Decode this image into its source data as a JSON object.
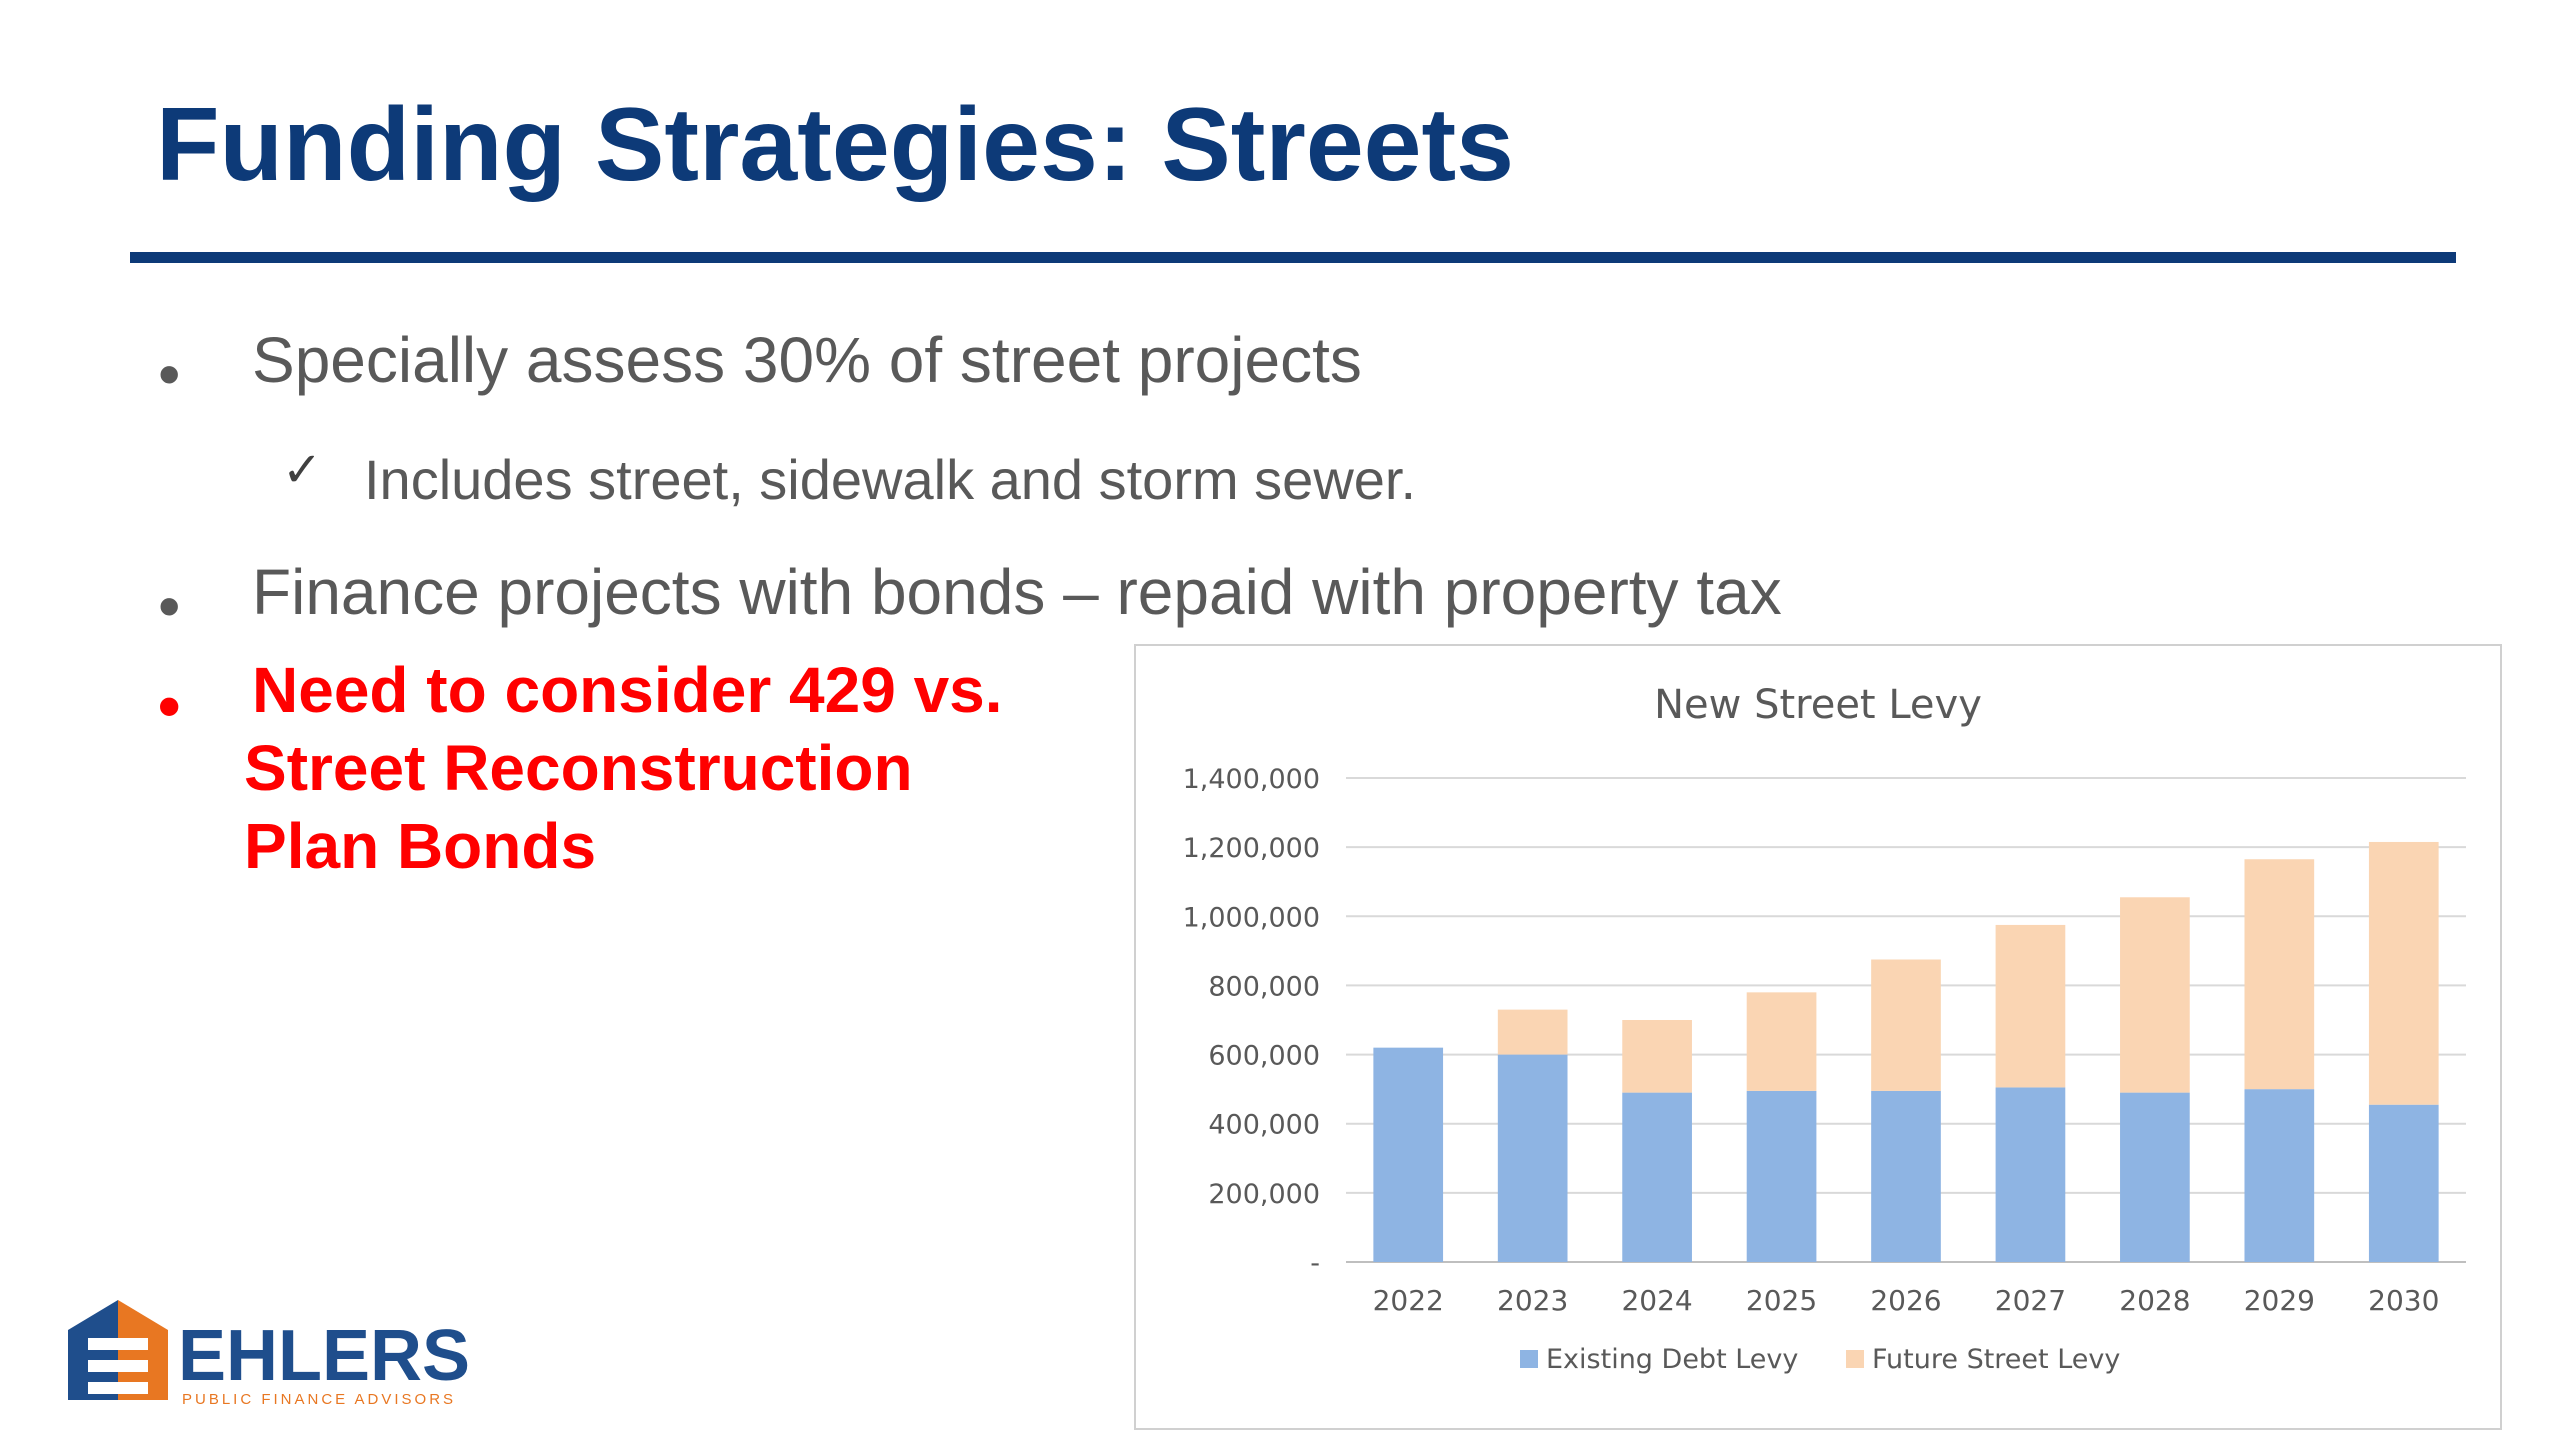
{
  "slide": {
    "title": "Funding Strategies: Streets",
    "bullets": [
      {
        "marker": "•",
        "text": "Specially assess 30% of street projects"
      },
      {
        "marker": "•",
        "text": "Finance projects with bonds – repaid with property tax"
      }
    ],
    "sub_bullet": {
      "marker": "✓",
      "text": "Includes street, sidewalk and storm sewer."
    },
    "highlight": {
      "marker": "•",
      "lines": [
        "Need to consider 429 vs.",
        "Street Reconstruction",
        "Plan Bonds"
      ],
      "color": "#ff0000"
    }
  },
  "colors": {
    "title": "#0d3a78",
    "existing": "#8eb4e3",
    "future": "#fad5b3"
  },
  "chart_data": {
    "type": "bar",
    "stacked": true,
    "title": "New Street Levy",
    "categories": [
      "2022",
      "2023",
      "2024",
      "2025",
      "2026",
      "2027",
      "2028",
      "2029",
      "2030"
    ],
    "series": [
      {
        "name": "Existing Debt Levy",
        "values": [
          620000,
          600000,
          490000,
          495000,
          495000,
          505000,
          490000,
          500000,
          455000
        ]
      },
      {
        "name": "Future Street Levy",
        "values": [
          0,
          130000,
          210000,
          285000,
          380000,
          470000,
          565000,
          665000,
          760000
        ]
      }
    ],
    "ylim": [
      0,
      1400000
    ],
    "yticks": [
      0,
      200000,
      400000,
      600000,
      800000,
      1000000,
      1200000,
      1400000
    ],
    "ytick_labels": [
      "-",
      "200,000",
      "400,000",
      "600,000",
      "800,000",
      "1,000,000",
      "1,200,000",
      "1,400,000"
    ],
    "grid": true,
    "legend_position": "bottom"
  },
  "logo": {
    "name": "EHLERS",
    "tagline": "PUBLIC FINANCE ADVISORS"
  }
}
